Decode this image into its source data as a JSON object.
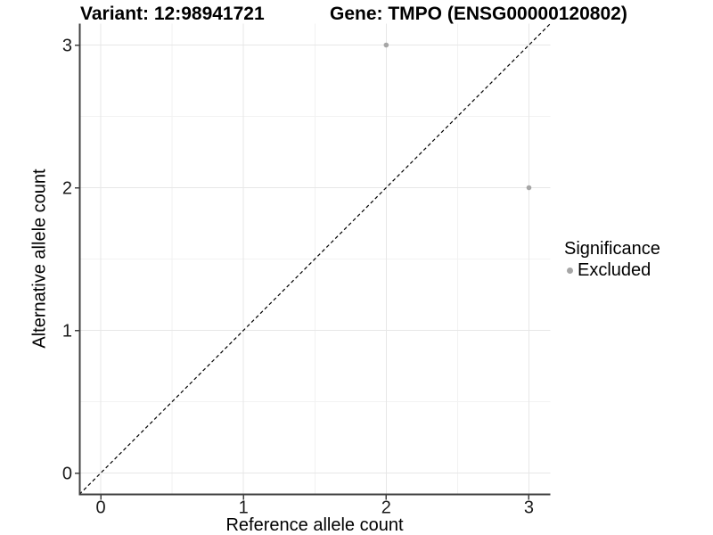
{
  "titles": {
    "left": "Variant: 12:98941721",
    "right": "Gene: TMPO (ENSG00000120802)"
  },
  "chart_data": {
    "type": "scatter",
    "xlabel": "Reference allele count",
    "ylabel": "Alternative allele count",
    "xlim": [
      0,
      3
    ],
    "ylim": [
      0,
      3
    ],
    "expansion": 0.15,
    "x_ticks": [
      "0",
      "1",
      "2",
      "3"
    ],
    "x_tick_values": [
      0,
      1,
      2,
      3
    ],
    "y_ticks": [
      "0",
      "1",
      "2",
      "3"
    ],
    "y_tick_values": [
      0,
      1,
      2,
      3
    ],
    "x_minor": [
      0.5,
      1.5,
      2.5
    ],
    "y_minor": [
      0.5,
      1.5,
      2.5
    ],
    "grid": true,
    "identity_line": {
      "style": "dashed",
      "slope": 1,
      "intercept": 0
    },
    "series": [
      {
        "name": "Excluded",
        "color": "#a6a6a6",
        "points": [
          {
            "x": 2,
            "y": 3
          },
          {
            "x": 3,
            "y": 2
          }
        ]
      }
    ],
    "legend": {
      "title": "Significance",
      "position": "right",
      "entries": [
        {
          "label": "Excluded",
          "color": "#a6a6a6"
        }
      ]
    }
  },
  "colors": {
    "axis_line": "#404040",
    "tick_mark": "#404040",
    "tick_label": "#1a1a1a",
    "grid_major": "#e7e7e7",
    "grid_minor": "#f2f2f2",
    "identity_line": "#000000",
    "point": "#a6a6a6",
    "background": "#ffffff"
  }
}
